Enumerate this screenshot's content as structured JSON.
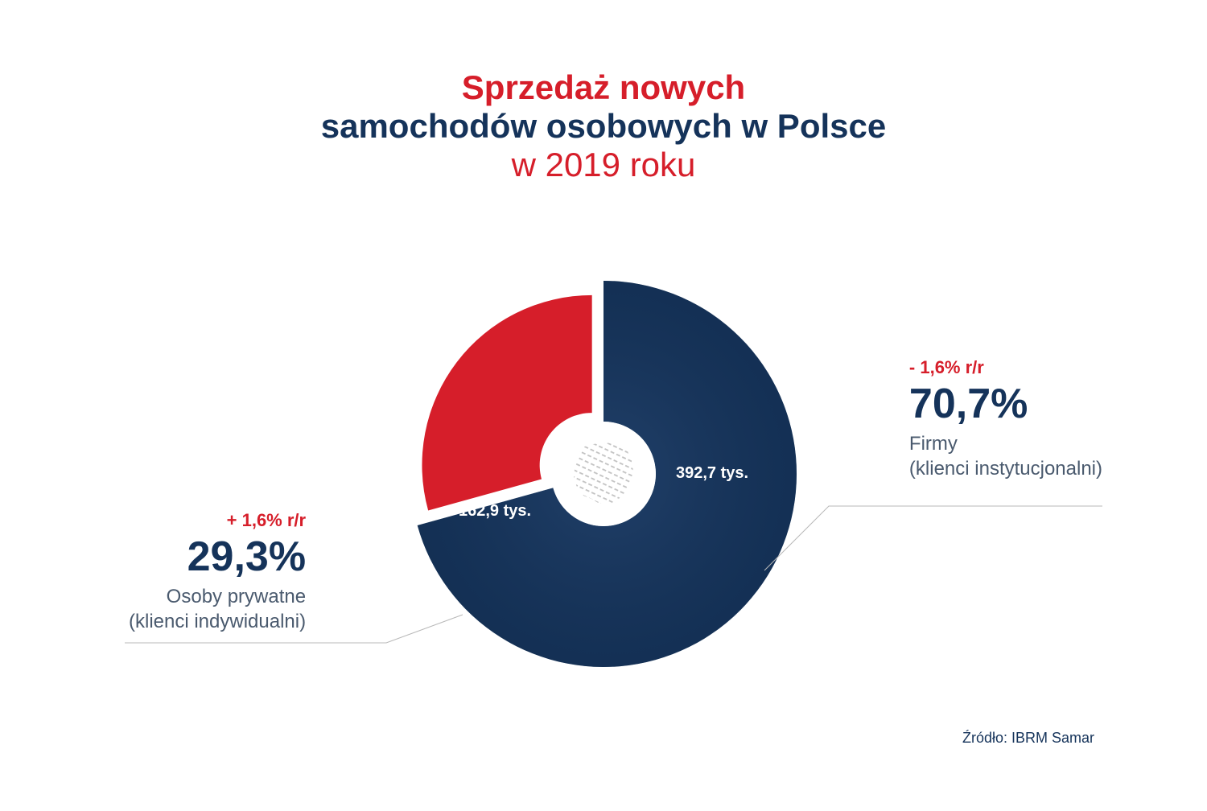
{
  "title": {
    "line1": "Sprzedaż nowych",
    "line2": "samochodów osobowych w Polsce",
    "line3": "w 2019 roku",
    "line1_color": "#d61e2a",
    "line2_color": "#15335a",
    "line3_color": "#d61e2a"
  },
  "chart": {
    "type": "donut",
    "outer_radius": 240,
    "inner_radius": 65,
    "background_color": "#ffffff",
    "slices": [
      {
        "name": "firmy",
        "percent": 70.7,
        "value_label": "392,7 tys.",
        "color": "#15335a",
        "overlay_gradient": true
      },
      {
        "name": "osoby",
        "percent": 29.3,
        "value_label": "162,9 tys.",
        "color": "#d61e2a",
        "pulled_out": true
      }
    ]
  },
  "callouts": {
    "right": {
      "change": "- 1,6% r/r",
      "change_color": "#d61e2a",
      "percent": "70,7%",
      "percent_color": "#15335a",
      "label_line1": "Firmy",
      "label_line2": "(klienci instytucjonalni)",
      "label_color": "#4a5a6e"
    },
    "left": {
      "change": "+ 1,6% r/r",
      "change_color": "#d61e2a",
      "percent": "29,3%",
      "percent_color": "#15335a",
      "label_line1": "Osoby prywatne",
      "label_line2": "(klienci indywidualni)",
      "label_color": "#4a5a6e"
    }
  },
  "leader_color": "#b8b8b8",
  "source": {
    "text": "Źródło: IBRM Samar",
    "color": "#15335a"
  },
  "center_pattern_color": "#c2c2c2"
}
